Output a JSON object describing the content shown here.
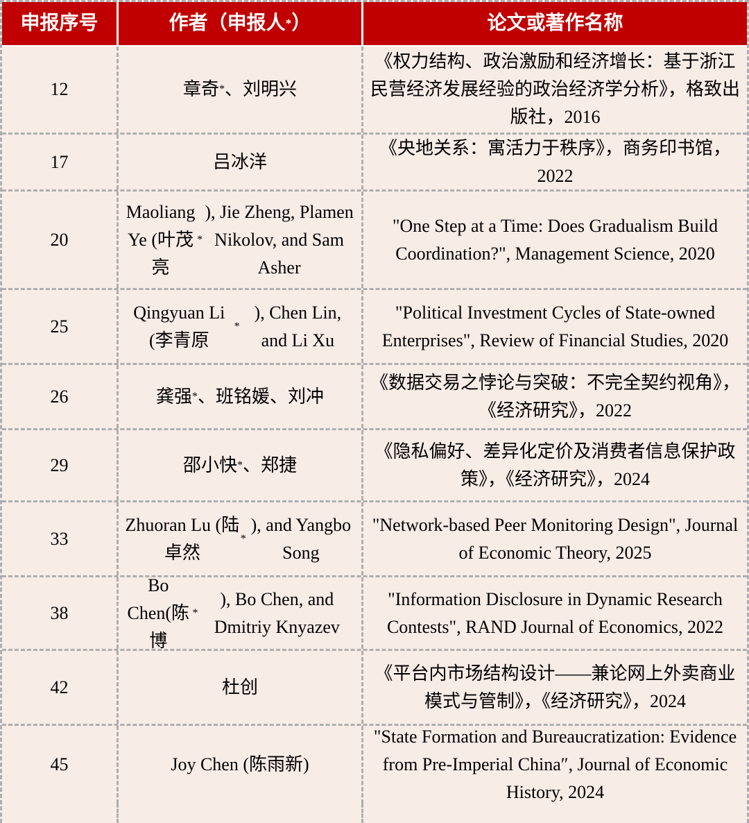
{
  "colors": {
    "header_bg": "#c00000",
    "header_text": "#ffffff",
    "body_bg": "#f8ece7",
    "grid_dash": "#aeaeae",
    "text": "#000000"
  },
  "table": {
    "columns": [
      {
        "label": "申报序号"
      },
      {
        "label": "作者（申报人*）"
      },
      {
        "label": "论文或著作名称"
      }
    ],
    "rows": [
      {
        "serial": "12",
        "authors": "章奇*、刘明兴",
        "title": "《权力结构、政治激励和经济增长：基于浙江民营经济发展经验的政治经济学分析》，格致出版社，2016"
      },
      {
        "serial": "17",
        "authors": "吕冰洋",
        "title": "《央地关系：寓活力于秩序》，商务印书馆，2022"
      },
      {
        "serial": "20",
        "authors": "Maoliang Ye (叶茂亮*), Jie Zheng, Plamen Nikolov, and Sam Asher",
        "title": "\"One Step at a Time: Does Gradualism Build Coordination?\", Management Science, 2020"
      },
      {
        "serial": "25",
        "authors": "Qingyuan Li (李青原*), Chen Lin, and Li Xu",
        "title": "\"Political Investment Cycles of State-owned Enterprises\", Review of Financial Studies, 2020"
      },
      {
        "serial": "26",
        "authors": "龚强*、班铭媛、刘冲",
        "title": "《数据交易之悖论与突破：不完全契约视角》，《经济研究》，2022"
      },
      {
        "serial": "29",
        "authors": "邵小快*、郑捷",
        "title": "《隐私偏好、差异化定价及消费者信息保护政策》，《经济研究》，2024"
      },
      {
        "serial": "33",
        "authors": "Zhuoran Lu (陆卓然*), and Yangbo Song",
        "title": "\"Network-based Peer Monitoring Design\", Journal of Economic Theory, 2025"
      },
      {
        "serial": "38",
        "authors": "Bo Chen(陈博*), Bo Chen, and Dmitriy Knyazev",
        "title": "\"Information Disclosure in Dynamic Research Contests\", RAND Journal of Economics, 2022"
      },
      {
        "serial": "42",
        "authors": "杜创",
        "title": "《平台内市场结构设计——兼论网上外卖商业模式与管制》，《经济研究》，2024"
      },
      {
        "serial": "45",
        "authors": "Joy Chen (陈雨新)",
        "title": "\"State Formation and Bureaucratization: Evidence from Pre-Imperial China″, Journal of Economic History, 2024"
      }
    ]
  }
}
